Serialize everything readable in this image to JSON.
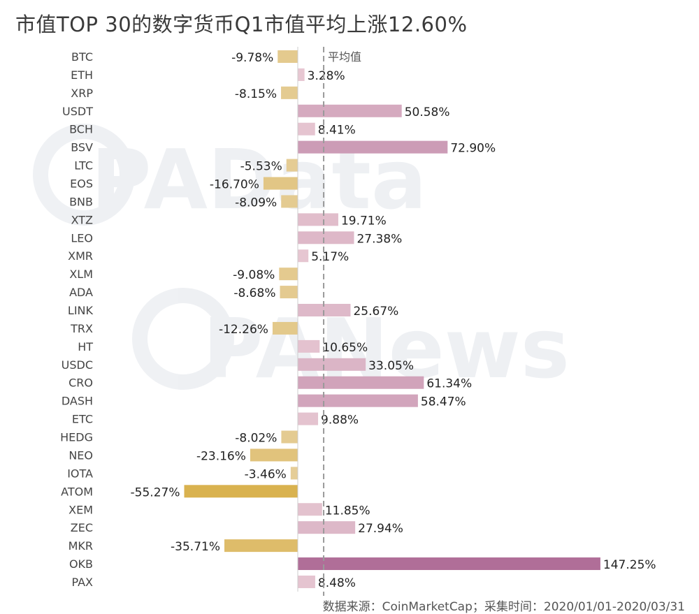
{
  "title": "市值TOP 30的数字货币Q1市值平均上涨12.60%",
  "source": "数据来源：CoinMarketCap；采集时间：2020/01/01-2020/03/31",
  "watermarks": [
    "PAData",
    "PANews"
  ],
  "colors": {
    "negative_light": "#e6cf9c",
    "negative_dark": "#d9b24f",
    "positive_light": "#e8c9d3",
    "positive_dark": "#b06e98",
    "avg_line": "#9a9a9a",
    "text": "#333333"
  },
  "chart_data": {
    "type": "bar",
    "orientation": "horizontal",
    "categories": [
      "BTC",
      "ETH",
      "XRP",
      "USDT",
      "BCH",
      "BSV",
      "LTC",
      "EOS",
      "BNB",
      "XTZ",
      "LEO",
      "XMR",
      "XLM",
      "ADA",
      "LINK",
      "TRX",
      "HT",
      "USDC",
      "CRO",
      "DASH",
      "ETC",
      "HEDG",
      "NEO",
      "IOTA",
      "ATOM",
      "XEM",
      "ZEC",
      "MKR",
      "OKB",
      "PAX"
    ],
    "values": [
      -9.78,
      3.28,
      -8.15,
      50.58,
      8.41,
      72.9,
      -5.53,
      -16.7,
      -8.09,
      19.71,
      27.38,
      5.17,
      -9.08,
      -8.68,
      25.67,
      -12.26,
      10.65,
      33.05,
      61.34,
      58.47,
      9.88,
      -8.02,
      -23.16,
      -3.46,
      -55.27,
      11.85,
      27.94,
      -35.71,
      147.25,
      8.48
    ],
    "labels": [
      "-9.78%",
      "3.28%",
      "-8.15%",
      "50.58%",
      "8.41%",
      "72.90%",
      "-5.53%",
      "-16.70%",
      "-8.09%",
      "19.71%",
      "27.38%",
      "5.17%",
      "-9.08%",
      "-8.68%",
      "25.67%",
      "-12.26%",
      "10.65%",
      "33.05%",
      "61.34%",
      "58.47%",
      "9.88%",
      "-8.02%",
      "-23.16%",
      "-3.46%",
      "-55.27%",
      "11.85%",
      "27.94%",
      "-35.71%",
      "147.25%",
      "8.48%"
    ],
    "unit": "%",
    "reference_line": {
      "label": "平均值",
      "value": 12.6
    },
    "xlim": [
      -56,
      150
    ],
    "grid": false,
    "legend": "none"
  }
}
